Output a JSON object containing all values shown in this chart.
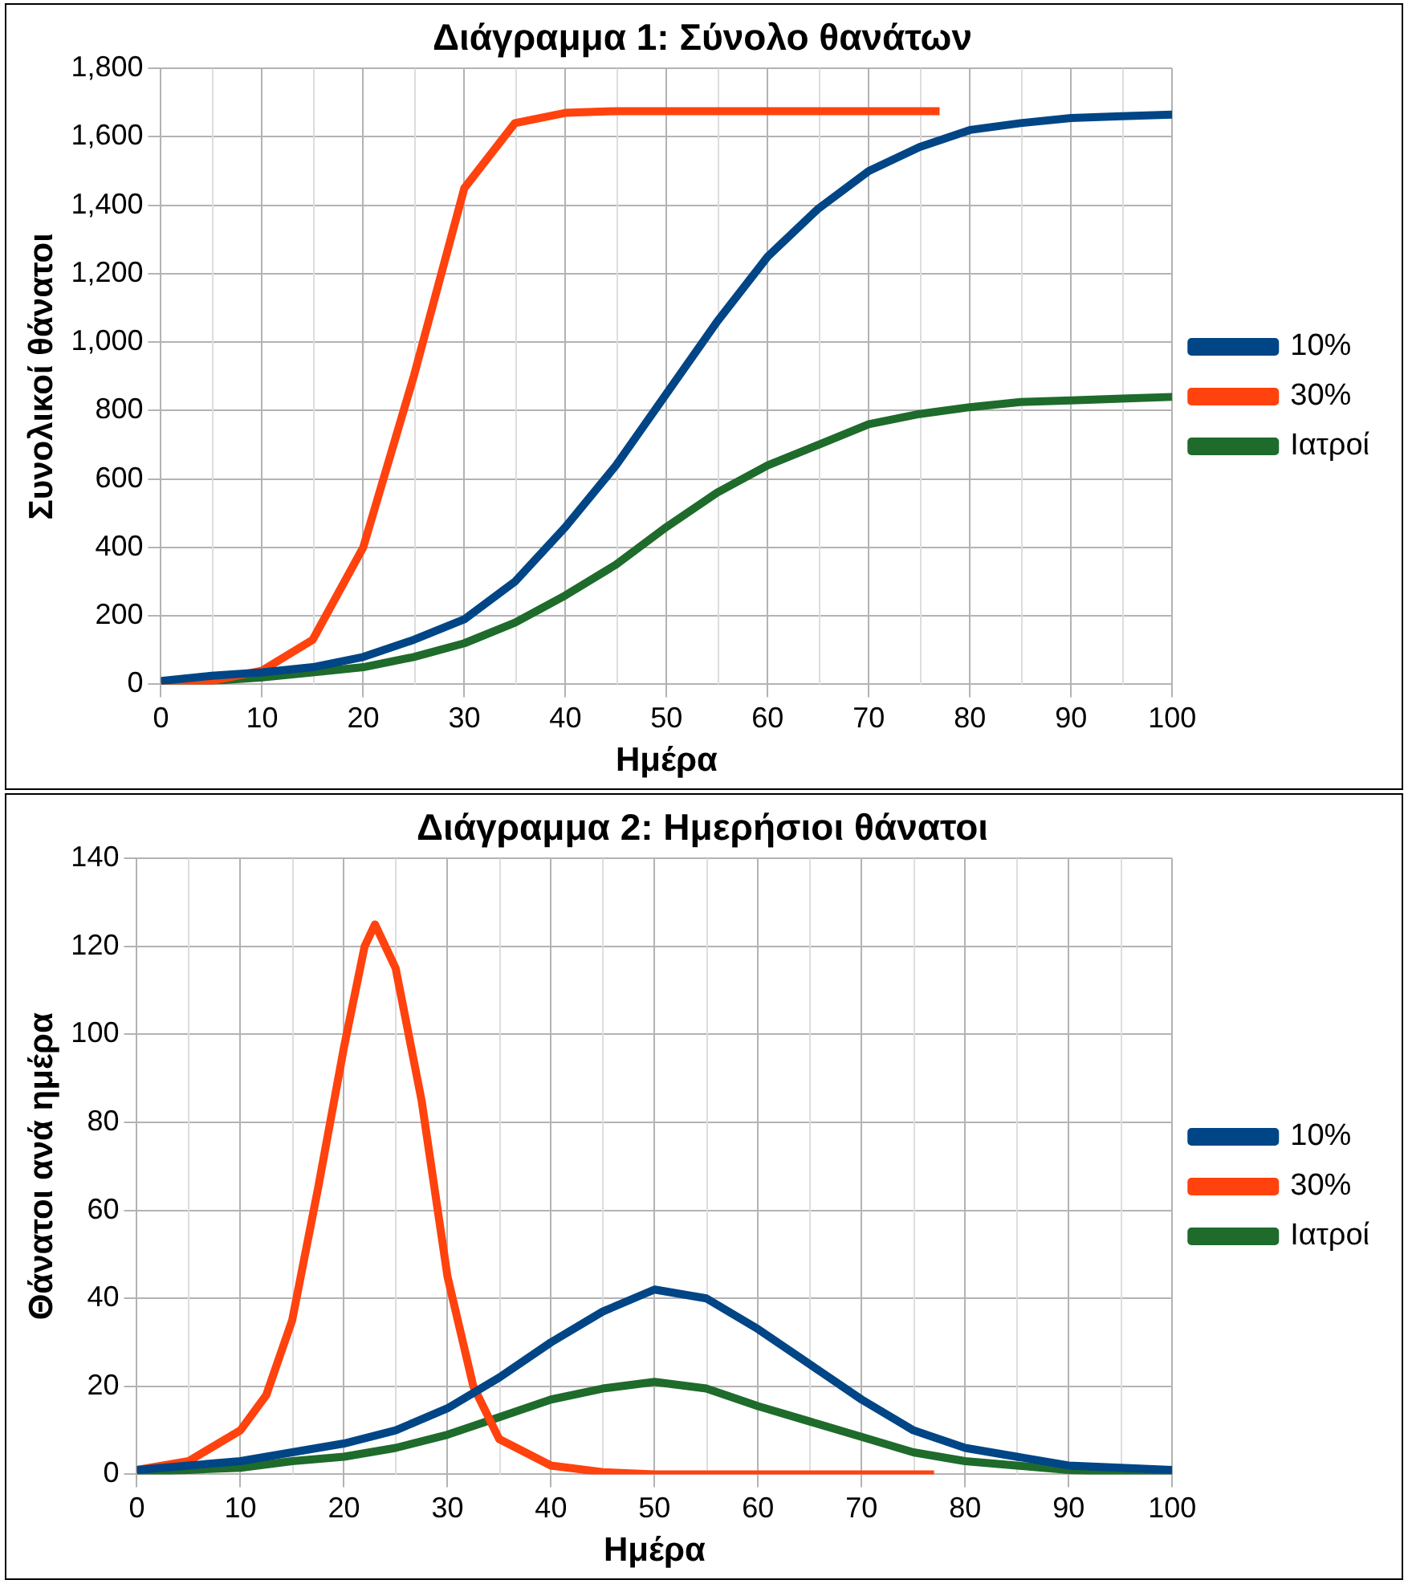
{
  "chart_data": [
    {
      "type": "line",
      "title": "Διάγραμμα 1: Σύνολο θανάτων",
      "xlabel": "Ημέρα",
      "ylabel": "Συνολικοί θάνατοι",
      "xlim": [
        0,
        100
      ],
      "xticks": [
        0,
        10,
        20,
        30,
        40,
        50,
        60,
        70,
        80,
        90,
        100
      ],
      "ylim": [
        0,
        1800
      ],
      "yticks": [
        0,
        200,
        400,
        600,
        800,
        {
          "value": 1000,
          "label": "1,000"
        },
        {
          "value": 1200,
          "label": "1,200"
        },
        {
          "value": 1400,
          "label": "1,400"
        },
        {
          "value": 1600,
          "label": "1,600"
        },
        {
          "value": 1800,
          "label": "1,800"
        }
      ],
      "grid": true,
      "legend": "right",
      "marker": "none",
      "line_style": "solid",
      "series": [
        {
          "name": "10%",
          "color": "#004586",
          "x": [
            0,
            5,
            10,
            15,
            20,
            25,
            30,
            35,
            40,
            45,
            50,
            55,
            60,
            65,
            70,
            75,
            80,
            85,
            90,
            95,
            100
          ],
          "values": [
            10,
            25,
            35,
            50,
            80,
            130,
            190,
            300,
            460,
            640,
            850,
            1060,
            1250,
            1390,
            1500,
            1570,
            1620,
            1640,
            1655,
            1660,
            1665
          ]
        },
        {
          "name": "30%",
          "color": "#ff420e",
          "x": [
            0,
            5,
            10,
            15,
            20,
            25,
            30,
            35,
            40,
            45,
            50,
            55,
            60,
            65,
            70,
            77
          ],
          "values": [
            5,
            10,
            40,
            130,
            400,
            900,
            1450,
            1640,
            1670,
            1675,
            1675,
            1675,
            1675,
            1675,
            1675,
            1675
          ]
        },
        {
          "name": "Ιατροί",
          "color": "#1e6b2b",
          "x": [
            0,
            5,
            10,
            15,
            20,
            25,
            30,
            35,
            40,
            45,
            50,
            55,
            60,
            65,
            70,
            75,
            80,
            85,
            90,
            95,
            100
          ],
          "values": [
            5,
            10,
            20,
            35,
            50,
            80,
            120,
            180,
            260,
            350,
            460,
            560,
            640,
            700,
            760,
            790,
            810,
            825,
            830,
            835,
            840
          ]
        }
      ]
    },
    {
      "type": "line",
      "title": "Διάγραμμα 2: Ημερήσιοι θάνατοι",
      "xlabel": "Ημέρα",
      "ylabel": "Θάνατοι ανά ημέρα",
      "xlim": [
        0,
        100
      ],
      "xticks": [
        0,
        10,
        20,
        30,
        40,
        50,
        60,
        70,
        80,
        90,
        100
      ],
      "ylim": [
        0,
        140
      ],
      "yticks": [
        0,
        20,
        40,
        60,
        80,
        100,
        120,
        140
      ],
      "grid": true,
      "legend": "right",
      "marker": "none",
      "line_style": "solid",
      "series": [
        {
          "name": "10%",
          "color": "#004586",
          "x": [
            0,
            5,
            10,
            15,
            20,
            25,
            30,
            35,
            40,
            45,
            50,
            55,
            60,
            65,
            70,
            75,
            80,
            85,
            90,
            95,
            100
          ],
          "values": [
            1,
            2,
            3,
            5,
            7,
            10,
            15,
            22,
            30,
            37,
            42,
            40,
            33,
            25,
            17,
            10,
            6,
            4,
            2,
            1.5,
            1
          ]
        },
        {
          "name": "30%",
          "color": "#ff420e",
          "x": [
            0,
            5,
            10,
            12.5,
            15,
            17.5,
            20,
            22,
            23,
            25,
            27.5,
            30,
            32.5,
            35,
            40,
            45,
            50,
            60,
            70,
            77
          ],
          "values": [
            1,
            3,
            10,
            18,
            35,
            65,
            97,
            120,
            125,
            115,
            85,
            45,
            20,
            8,
            2,
            0.5,
            0,
            0,
            0,
            0
          ]
        },
        {
          "name": "Ιατροί",
          "color": "#1e6b2b",
          "x": [
            0,
            5,
            10,
            15,
            20,
            25,
            30,
            35,
            40,
            45,
            50,
            55,
            60,
            65,
            70,
            75,
            80,
            85,
            90,
            95,
            100
          ],
          "values": [
            0.5,
            1,
            1.5,
            3,
            4,
            6,
            9,
            13,
            17,
            19.5,
            21,
            19.5,
            15.5,
            12,
            8.5,
            5,
            3,
            2,
            1,
            0.5,
            0
          ]
        }
      ]
    }
  ]
}
